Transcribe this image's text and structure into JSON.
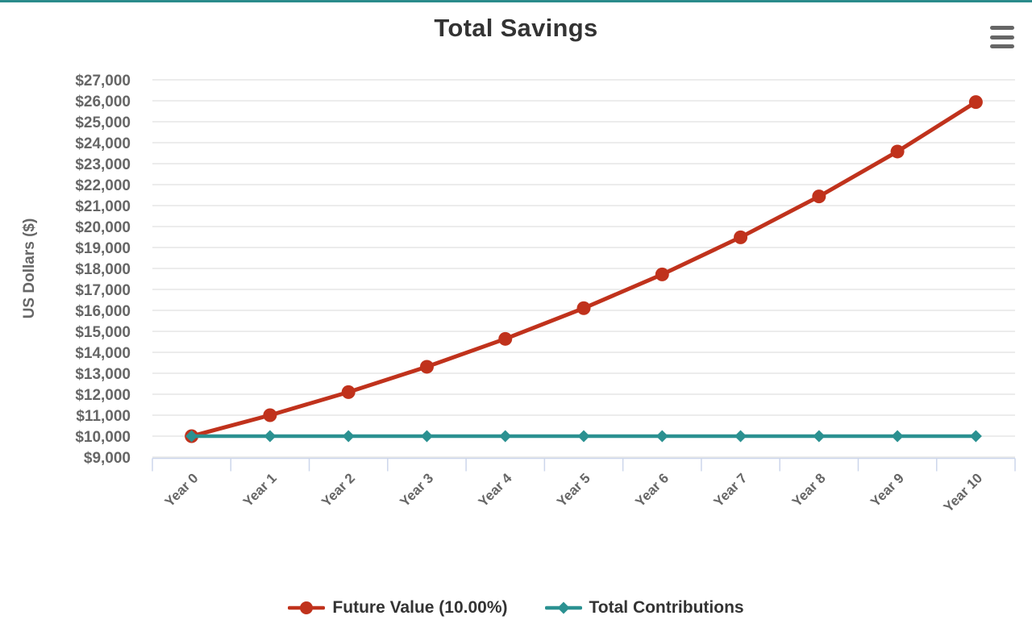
{
  "page": {
    "top_border_color": "#2a8b8b",
    "background_color": "#ffffff"
  },
  "header": {
    "title": "Total Savings",
    "menu_icon": "hamburger-icon",
    "menu_icon_color": "#666666"
  },
  "chart_data": {
    "type": "line",
    "title": "Total Savings",
    "xlabel": "",
    "ylabel": "US Dollars ($)",
    "categories": [
      "Year 0",
      "Year 1",
      "Year 2",
      "Year 3",
      "Year 4",
      "Year 5",
      "Year 6",
      "Year 7",
      "Year 8",
      "Year 9",
      "Year 10"
    ],
    "series": [
      {
        "name": "Future Value (10.00%)",
        "color": "#c0321c",
        "marker": "circle",
        "values": [
          10000,
          11000,
          12100,
          13310,
          14641,
          16105,
          17716,
          19487,
          21436,
          23579,
          25937
        ]
      },
      {
        "name": "Total Contributions",
        "color": "#2b9191",
        "marker": "diamond",
        "values": [
          10000,
          10000,
          10000,
          10000,
          10000,
          10000,
          10000,
          10000,
          10000,
          10000,
          10000
        ]
      }
    ],
    "ylim": [
      9000,
      27000
    ],
    "ytick_step": 1000,
    "ytick_labels": [
      "$9,000",
      "$10,000",
      "$11,000",
      "$12,000",
      "$13,000",
      "$14,000",
      "$15,000",
      "$16,000",
      "$17,000",
      "$18,000",
      "$19,000",
      "$20,000",
      "$21,000",
      "$22,000",
      "$23,000",
      "$24,000",
      "$25,000",
      "$26,000",
      "$27,000"
    ],
    "grid": true,
    "legend_position": "bottom-center",
    "x_label_rotation": -45,
    "gridline_color": "#e6e6e6",
    "axis_line_color": "#ccd6eb",
    "label_color": "#666666",
    "title_color": "#333333",
    "legend_text_color": "#333333"
  }
}
